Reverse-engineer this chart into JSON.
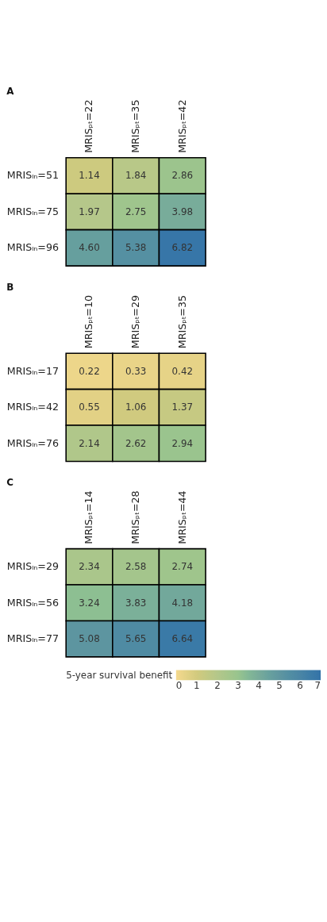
{
  "chart_data": [
    {
      "type": "heatmap",
      "title": "A",
      "categories": [
        "MRISₚₜ=22",
        "MRISₚₜ=35",
        "MRISₚₜ=42"
      ],
      "y_categories": [
        "MRISₗₙ=51",
        "MRISₗₙ=75",
        "MRISₗₙ=96"
      ],
      "cells": [
        [
          1.14,
          1.84,
          2.86
        ],
        [
          1.97,
          2.75,
          3.98
        ],
        [
          4.6,
          5.38,
          6.82
        ]
      ],
      "cell_labels": [
        [
          "1.14",
          "1.84",
          "2.86"
        ],
        [
          "1.97",
          "2.75",
          "3.98"
        ],
        [
          "4.60",
          "5.38",
          "6.82"
        ]
      ]
    },
    {
      "type": "heatmap",
      "title": "B",
      "categories": [
        "MRISₚₜ=10",
        "MRISₚₜ=29",
        "MRISₚₜ=35"
      ],
      "y_categories": [
        "MRISₗₙ=17",
        "MRISₗₙ=42",
        "MRISₗₙ=76"
      ],
      "cells": [
        [
          0.22,
          0.33,
          0.42
        ],
        [
          0.55,
          1.06,
          1.37
        ],
        [
          2.14,
          2.62,
          2.94
        ]
      ],
      "data_labels": true
    },
    {
      "type": "heatmap",
      "title": "C",
      "categories": [
        "MRISₚₜ=14",
        "MRISₚₜ=28",
        "MRISₚₜ=44"
      ],
      "y_categories": [
        "MRISₗₙ=29",
        "MRISₗₙ=56",
        "MRISₗₙ=77"
      ],
      "cells": [
        [
          2.34,
          2.58,
          2.74
        ],
        [
          3.24,
          3.83,
          4.18
        ],
        [
          5.08,
          5.65,
          6.64
        ]
      ],
      "data_labels": true,
      "clim": [
        0,
        7
      ],
      "clabel": "5-year survival benefit",
      "cticks": [
        0,
        1,
        2,
        3,
        4,
        5,
        6,
        7
      ]
    }
  ]
}
